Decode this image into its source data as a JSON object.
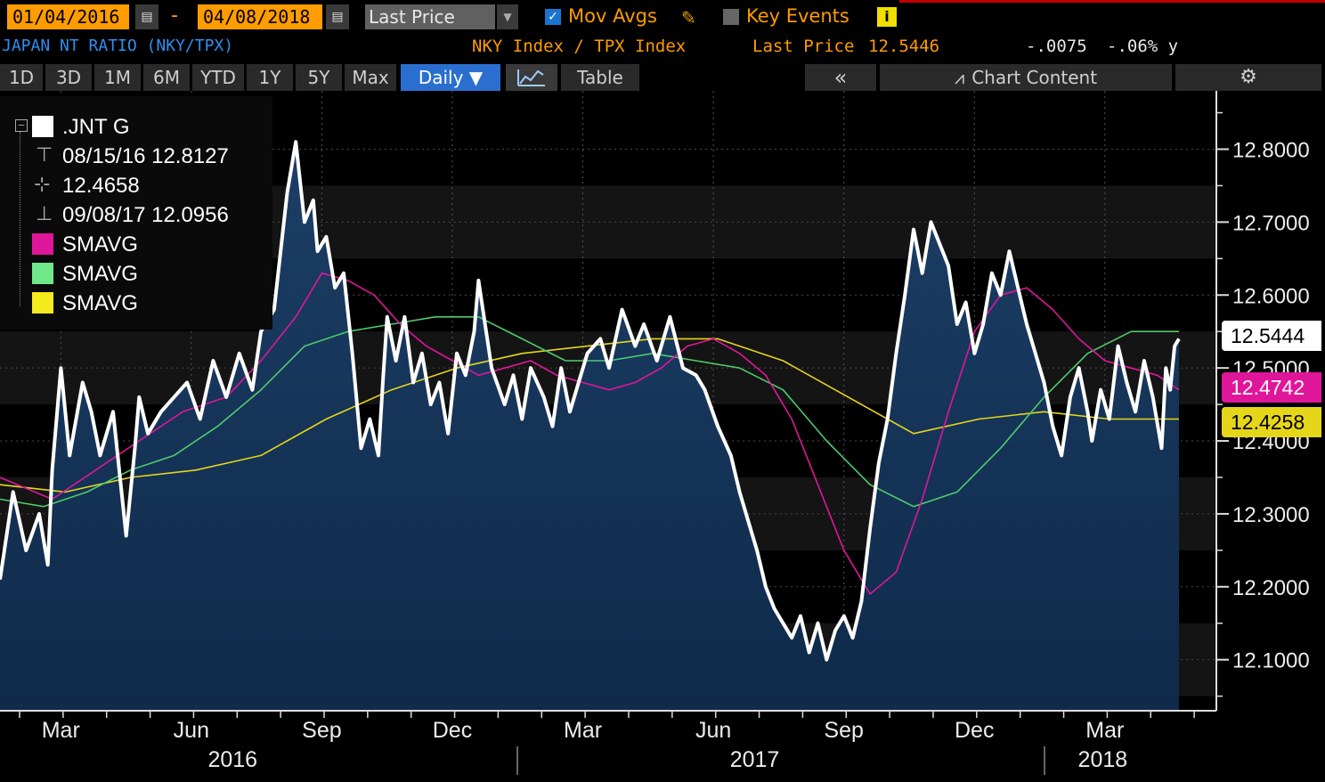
{
  "toolbar": {
    "start_date": "01/04/2016",
    "end_date": "04/08/2018",
    "date_dash": "-",
    "field": "Last Price",
    "mov_avgs_label": "Mov Avgs",
    "key_events_label": "Key Events",
    "info_glyph": "i"
  },
  "header": {
    "title": "JAPAN NT RATIO (NKY/TPX)",
    "securities": "NKY Index / TPX Index",
    "last_price_label": "Last Price",
    "last_price_value": "12.5446",
    "change": "-.0075",
    "change_pct": "-.06% y"
  },
  "tabs": [
    {
      "label": "1D"
    },
    {
      "label": "3D"
    },
    {
      "label": "1M"
    },
    {
      "label": "6M"
    },
    {
      "label": "YTD"
    },
    {
      "label": "1Y"
    },
    {
      "label": "5Y"
    },
    {
      "label": "Max"
    },
    {
      "label": "Daily ▼"
    },
    {
      "label": "Table"
    }
  ],
  "controls": {
    "collapse_glyph": "«",
    "chart_content_label": "Chart Content"
  },
  "legend": {
    "series_name": ".JNT G",
    "high": "08/15/16 12.8127",
    "average": "12.4658",
    "low": "09/08/17 12.0956",
    "ma1": "SMAVG",
    "ma2": "SMAVG",
    "ma3": "SMAVG"
  },
  "colors": {
    "price": "#ffffff",
    "ma1": "#e0169a",
    "ma2": "#4ecb6c",
    "ma3": "#e6d619",
    "accent": "#ff9c00",
    "fill": "#0f2a4a"
  },
  "chart_data": {
    "type": "line",
    "ylim": [
      12.03,
      12.88
    ],
    "xlim": [
      0,
      27.1
    ],
    "yticks": [
      "12.8000",
      "12.7000",
      "12.6000",
      "12.5000",
      "12.4000",
      "12.3000",
      "12.2000",
      "12.1000"
    ],
    "ytick_values": [
      12.8,
      12.7,
      12.6,
      12.5,
      12.4,
      12.3,
      12.2,
      12.1
    ],
    "x_month_labels": [
      {
        "label": "Mar",
        "x": 1.95
      },
      {
        "label": "Jun",
        "x": 4.95
      },
      {
        "label": "Sep",
        "x": 7.95
      },
      {
        "label": "Dec",
        "x": 10.95
      },
      {
        "label": "Mar",
        "x": 13.95
      },
      {
        "label": "Jun",
        "x": 16.95
      },
      {
        "label": "Sep",
        "x": 19.95
      },
      {
        "label": "Dec",
        "x": 22.95
      },
      {
        "label": "Mar",
        "x": 25.95
      }
    ],
    "x_year_labels": [
      {
        "label": "2016",
        "x": 5.9
      },
      {
        "label": "2017",
        "x": 17.9
      },
      {
        "label": "2018",
        "x": 25.9
      }
    ],
    "last_tags": {
      "price": "12.5444",
      "ma1": "12.4742",
      "ma3": "12.4258"
    },
    "series": [
      {
        "name": ".JNT G",
        "x": [
          0,
          0.3,
          0.6,
          0.9,
          1.1,
          1.2,
          1.4,
          1.6,
          1.9,
          2.1,
          2.3,
          2.6,
          2.9,
          3.1,
          3.2,
          3.4,
          3.7,
          4.0,
          4.3,
          4.6,
          4.9,
          5.2,
          5.5,
          5.8,
          6.0,
          6.3,
          6.6,
          6.8,
          7.0,
          7.2,
          7.3,
          7.5,
          7.7,
          7.9,
          8.1,
          8.3,
          8.5,
          8.7,
          8.8,
          8.9,
          9.1,
          9.3,
          9.5,
          9.7,
          9.9,
          10.1,
          10.3,
          10.5,
          10.7,
          10.9,
          11.0,
          11.3,
          11.6,
          11.8,
          12.0,
          12.2,
          12.5,
          12.7,
          12.9,
          13.1,
          13.3,
          13.5,
          13.8,
          14.0,
          14.3,
          14.6,
          14.8,
          15.1,
          15.4,
          15.7,
          16.0,
          16.2,
          16.5,
          16.8,
          17.0,
          17.2,
          17.4,
          17.6,
          17.8,
          18.0,
          18.2,
          18.4,
          18.6,
          18.8,
          19.0,
          19.2,
          19.4,
          19.6,
          19.8,
          20.0,
          20.2,
          20.4,
          20.6,
          20.8,
          21.0,
          21.2,
          21.4,
          21.6,
          21.8,
          22.0,
          22.2,
          22.4,
          22.6,
          22.8,
          23.0,
          23.2,
          23.4,
          23.6,
          23.8,
          24.0,
          24.2,
          24.4,
          24.6,
          24.8,
          25.0,
          25.1,
          25.3,
          25.5,
          25.7,
          25.9,
          26.1,
          26.3,
          26.5,
          26.7,
          26.8,
          26.9,
          27.0,
          27.1
        ],
        "values": [
          12.21,
          12.33,
          12.25,
          12.3,
          12.23,
          12.36,
          12.5,
          12.38,
          12.48,
          12.44,
          12.38,
          12.44,
          12.27,
          12.39,
          12.46,
          12.41,
          12.44,
          12.46,
          12.48,
          12.43,
          12.51,
          12.46,
          12.52,
          12.47,
          12.55,
          12.58,
          12.74,
          12.81,
          12.7,
          12.73,
          12.66,
          12.68,
          12.61,
          12.63,
          12.52,
          12.39,
          12.43,
          12.38,
          12.48,
          12.57,
          12.51,
          12.57,
          12.48,
          12.52,
          12.45,
          12.48,
          12.41,
          12.52,
          12.49,
          12.55,
          12.62,
          12.5,
          12.45,
          12.49,
          12.43,
          12.5,
          12.46,
          12.42,
          12.5,
          12.44,
          12.48,
          12.52,
          12.54,
          12.5,
          12.58,
          12.53,
          12.56,
          12.51,
          12.57,
          12.5,
          12.49,
          12.47,
          12.42,
          12.38,
          12.33,
          12.29,
          12.25,
          12.2,
          12.17,
          12.15,
          12.13,
          12.16,
          12.11,
          12.15,
          12.1,
          12.14,
          12.16,
          12.13,
          12.18,
          12.28,
          12.37,
          12.43,
          12.52,
          12.6,
          12.69,
          12.63,
          12.7,
          12.67,
          12.64,
          12.56,
          12.59,
          12.52,
          12.56,
          12.63,
          12.6,
          12.66,
          12.61,
          12.56,
          12.52,
          12.48,
          12.42,
          12.38,
          12.46,
          12.5,
          12.44,
          12.4,
          12.47,
          12.43,
          12.53,
          12.48,
          12.44,
          12.51,
          12.46,
          12.39,
          12.5,
          12.47,
          12.53,
          12.54
        ]
      },
      {
        "name": "SMAVG",
        "x": [
          0,
          1.2,
          2.2,
          3.2,
          4.2,
          5.2,
          6.0,
          6.8,
          7.4,
          8.0,
          8.6,
          9.2,
          9.8,
          10.4,
          11.0,
          11.6,
          12.2,
          12.8,
          13.4,
          14.0,
          14.6,
          15.2,
          15.8,
          16.4,
          17.0,
          17.6,
          18.2,
          18.8,
          19.4,
          20.0,
          20.6,
          21.2,
          21.8,
          22.4,
          23.0,
          23.6,
          24.2,
          24.8,
          25.4,
          26.0,
          26.6,
          27.1
        ],
        "values": [
          12.35,
          12.32,
          12.36,
          12.4,
          12.44,
          12.46,
          12.51,
          12.57,
          12.63,
          12.62,
          12.6,
          12.56,
          12.53,
          12.51,
          12.49,
          12.5,
          12.51,
          12.49,
          12.48,
          12.47,
          12.48,
          12.5,
          12.53,
          12.54,
          12.52,
          12.49,
          12.43,
          12.34,
          12.25,
          12.19,
          12.22,
          12.32,
          12.44,
          12.55,
          12.6,
          12.61,
          12.58,
          12.54,
          12.51,
          12.5,
          12.49,
          12.47
        ]
      },
      {
        "name": "SMAVG",
        "x": [
          0,
          1.0,
          2.0,
          3.0,
          4.0,
          5.0,
          6.0,
          7.0,
          8.0,
          9.0,
          10.0,
          11.0,
          12.0,
          13.0,
          14.0,
          15.0,
          16.0,
          17.0,
          18.0,
          19.0,
          20.0,
          21.0,
          22.0,
          23.0,
          24.0,
          25.0,
          26.0,
          27.1
        ],
        "values": [
          12.32,
          12.31,
          12.33,
          12.36,
          12.38,
          12.42,
          12.47,
          12.53,
          12.55,
          12.56,
          12.57,
          12.57,
          12.54,
          12.51,
          12.51,
          12.52,
          12.51,
          12.5,
          12.47,
          12.4,
          12.34,
          12.31,
          12.33,
          12.39,
          12.46,
          12.52,
          12.55,
          12.55
        ]
      },
      {
        "name": "SMAVG",
        "x": [
          0,
          1.5,
          3.0,
          4.5,
          6.0,
          7.5,
          9.0,
          10.5,
          12.0,
          13.5,
          15.0,
          16.5,
          18.0,
          19.5,
          21.0,
          22.5,
          24.0,
          25.5,
          27.1
        ],
        "values": [
          12.34,
          12.33,
          12.35,
          12.36,
          12.38,
          12.43,
          12.47,
          12.5,
          12.52,
          12.53,
          12.54,
          12.54,
          12.51,
          12.46,
          12.41,
          12.43,
          12.44,
          12.43,
          12.43
        ]
      }
    ]
  }
}
